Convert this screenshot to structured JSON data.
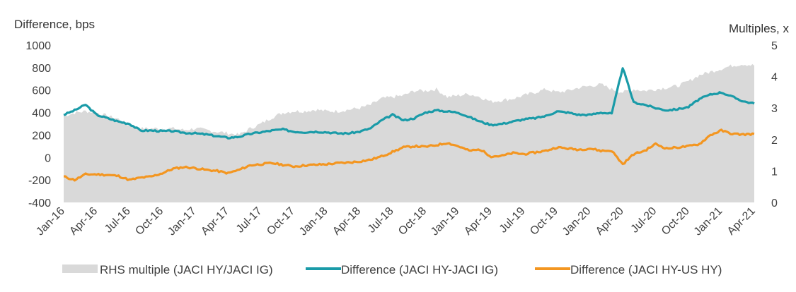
{
  "chart_data": {
    "type": "line",
    "left_axis_title": "Difference, bps",
    "right_axis_title": "Multiples, x",
    "y_left": {
      "min": -400,
      "max": 1000,
      "ticks": [
        1000,
        800,
        600,
        400,
        200,
        0,
        -200,
        -400
      ]
    },
    "y_right": {
      "min": 0,
      "max": 5,
      "ticks": [
        5,
        4,
        3,
        2,
        1,
        0
      ]
    },
    "x_ticks": [
      "Jan-16",
      "Apr-16",
      "Jul-16",
      "Oct-16",
      "Jan-17",
      "Apr-17",
      "Jul-17",
      "Oct-17",
      "Jan-18",
      "Apr-18",
      "Jul-18",
      "Oct-18",
      "Jan-19",
      "Apr-19",
      "Jul-19",
      "Oct-19",
      "Jan-20",
      "Apr-20",
      "Jul-20",
      "Oct-20",
      "Jan-21",
      "Apr-21"
    ],
    "legend": [
      {
        "label": "RHS multiple (JACI HY/JACI IG)",
        "color": "#d9d9d9"
      },
      {
        "label": "Difference (JACI HY-JACI IG)",
        "color": "#1a9ba8"
      },
      {
        "label": "Difference (JACI HY-US HY)",
        "color": "#f39621"
      }
    ],
    "series": [
      {
        "name": "RHS multiple (JACI HY/JACI IG)",
        "axis": "right",
        "color": "#d9d9d9",
        "x": [
          "Jan-16",
          "Feb-16",
          "Mar-16",
          "Apr-16",
          "May-16",
          "Jun-16",
          "Jul-16",
          "Aug-16",
          "Sep-16",
          "Oct-16",
          "Nov-16",
          "Dec-16",
          "Jan-17",
          "Feb-17",
          "Mar-17",
          "Apr-17",
          "May-17",
          "Jun-17",
          "Jul-17",
          "Aug-17",
          "Sep-17",
          "Oct-17",
          "Nov-17",
          "Dec-17",
          "Jan-18",
          "Feb-18",
          "Mar-18",
          "Apr-18",
          "May-18",
          "Jun-18",
          "Jul-18",
          "Aug-18",
          "Sep-18",
          "Oct-18",
          "Nov-18",
          "Dec-18",
          "Jan-19",
          "Feb-19",
          "Mar-19",
          "Apr-19",
          "May-19",
          "Jun-19",
          "Jul-19",
          "Aug-19",
          "Sep-19",
          "Oct-19",
          "Nov-19",
          "Dec-19",
          "Jan-20",
          "Feb-20",
          "Mar-20",
          "Apr-20",
          "May-20",
          "Jun-20",
          "Jul-20",
          "Aug-20",
          "Sep-20",
          "Oct-20",
          "Nov-20",
          "Dec-20",
          "Jan-21",
          "Feb-21",
          "Mar-21",
          "Apr-21"
        ],
        "values": [
          2.75,
          2.85,
          2.9,
          2.85,
          2.75,
          2.65,
          2.45,
          2.35,
          2.35,
          2.35,
          2.35,
          2.3,
          2.35,
          2.3,
          2.25,
          2.2,
          2.15,
          2.35,
          2.5,
          2.7,
          2.85,
          2.9,
          2.9,
          2.95,
          2.9,
          2.9,
          2.95,
          3.0,
          3.1,
          3.3,
          3.35,
          3.4,
          3.55,
          3.55,
          3.6,
          3.35,
          3.4,
          3.45,
          3.35,
          3.2,
          3.25,
          3.3,
          3.4,
          3.5,
          3.6,
          3.5,
          3.55,
          3.65,
          3.7,
          3.75,
          3.6,
          3.5,
          3.6,
          3.55,
          3.6,
          3.65,
          3.7,
          3.85,
          4.05,
          4.15,
          4.25,
          4.35,
          4.4,
          4.35
        ]
      },
      {
        "name": "Difference (JACI HY-JACI IG)",
        "axis": "left",
        "color": "#1a9ba8",
        "x": [
          "Jan-16",
          "Feb-16",
          "Mar-16",
          "Apr-16",
          "May-16",
          "Jun-16",
          "Jul-16",
          "Aug-16",
          "Sep-16",
          "Oct-16",
          "Nov-16",
          "Dec-16",
          "Jan-17",
          "Feb-17",
          "Mar-17",
          "Apr-17",
          "May-17",
          "Jun-17",
          "Jul-17",
          "Aug-17",
          "Sep-17",
          "Oct-17",
          "Nov-17",
          "Dec-17",
          "Jan-18",
          "Feb-18",
          "Mar-18",
          "Apr-18",
          "May-18",
          "Jun-18",
          "Jul-18",
          "Aug-18",
          "Sep-18",
          "Oct-18",
          "Nov-18",
          "Dec-18",
          "Jan-19",
          "Feb-19",
          "Mar-19",
          "Apr-19",
          "May-19",
          "Jun-19",
          "Jul-19",
          "Aug-19",
          "Sep-19",
          "Oct-19",
          "Nov-19",
          "Dec-19",
          "Jan-20",
          "Feb-20",
          "Mar-20",
          "Apr-20",
          "May-20",
          "Jun-20",
          "Jul-20",
          "Aug-20",
          "Sep-20",
          "Oct-20",
          "Nov-20",
          "Dec-20",
          "Jan-21",
          "Feb-21",
          "Mar-21",
          "Apr-21"
        ],
        "values": [
          380,
          420,
          470,
          380,
          350,
          320,
          300,
          240,
          240,
          235,
          235,
          220,
          215,
          205,
          190,
          175,
          185,
          210,
          225,
          240,
          250,
          230,
          225,
          230,
          225,
          215,
          215,
          230,
          260,
          330,
          380,
          330,
          350,
          400,
          420,
          410,
          400,
          360,
          320,
          290,
          300,
          320,
          340,
          350,
          370,
          410,
          400,
          380,
          380,
          400,
          390,
          800,
          490,
          470,
          440,
          420,
          430,
          450,
          520,
          560,
          580,
          540,
          500,
          480
        ]
      },
      {
        "name": "Difference (JACI HY-US HY)",
        "axis": "left",
        "color": "#f39621",
        "x": [
          "Jan-16",
          "Feb-16",
          "Mar-16",
          "Apr-16",
          "May-16",
          "Jun-16",
          "Jul-16",
          "Aug-16",
          "Sep-16",
          "Oct-16",
          "Nov-16",
          "Dec-16",
          "Jan-17",
          "Feb-17",
          "Mar-17",
          "Apr-17",
          "May-17",
          "Jun-17",
          "Jul-17",
          "Aug-17",
          "Sep-17",
          "Oct-17",
          "Nov-17",
          "Dec-17",
          "Jan-18",
          "Feb-18",
          "Mar-18",
          "Apr-18",
          "May-18",
          "Jun-18",
          "Jul-18",
          "Aug-18",
          "Sep-18",
          "Oct-18",
          "Nov-18",
          "Dec-18",
          "Jan-19",
          "Feb-19",
          "Mar-19",
          "Apr-19",
          "May-19",
          "Jun-19",
          "Jul-19",
          "Aug-19",
          "Sep-19",
          "Oct-19",
          "Nov-19",
          "Dec-19",
          "Jan-20",
          "Feb-20",
          "Mar-20",
          "Apr-20",
          "May-20",
          "Jun-20",
          "Jul-20",
          "Aug-20",
          "Sep-20",
          "Oct-20",
          "Nov-20",
          "Dec-20",
          "Jan-21",
          "Feb-21",
          "Mar-21",
          "Apr-21"
        ],
        "values": [
          -170,
          -200,
          -150,
          -150,
          -155,
          -165,
          -200,
          -180,
          -170,
          -140,
          -100,
          -85,
          -95,
          -110,
          -120,
          -140,
          -110,
          -70,
          -60,
          -50,
          -65,
          -80,
          -70,
          -65,
          -60,
          -50,
          -45,
          -35,
          -20,
          10,
          50,
          90,
          100,
          95,
          110,
          130,
          100,
          60,
          70,
          10,
          15,
          40,
          30,
          45,
          60,
          90,
          80,
          70,
          80,
          60,
          60,
          -60,
          30,
          60,
          120,
          80,
          90,
          100,
          120,
          200,
          240,
          210,
          205,
          210
        ]
      }
    ]
  }
}
